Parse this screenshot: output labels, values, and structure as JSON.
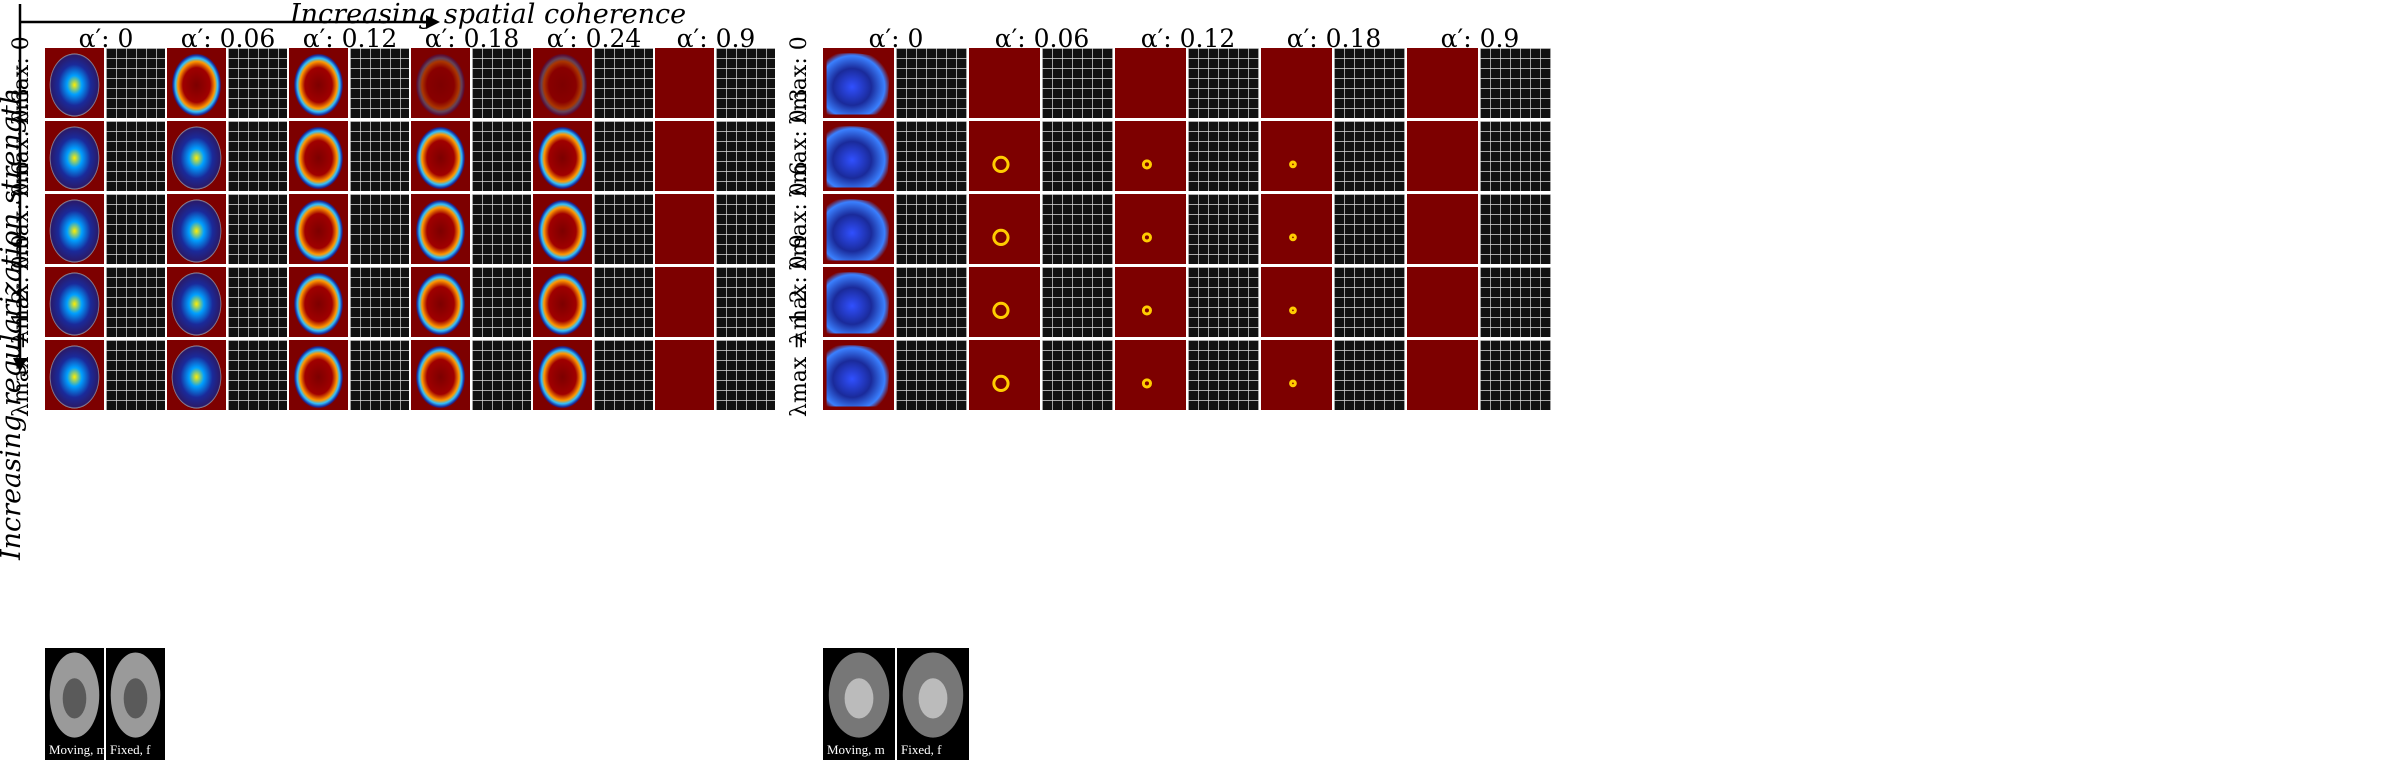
{
  "figure": {
    "x_axis_title": "Increasing spatial coherence",
    "y_axis_title": "Increasing regularization strength"
  },
  "left_panel": {
    "columns": [
      "α′: 0",
      "α′: 0.06",
      "α′: 0.12",
      "α′: 0.18",
      "α′: 0.24",
      "α′: 0.9"
    ],
    "rows": [
      "λmax: 0",
      "λmax: 0.3",
      "λmax: 0.6",
      "λmax: 0.9",
      "λmax = 1.2"
    ],
    "thumbnails": [
      "Moving, m",
      "Fixed, f"
    ]
  },
  "right_panel": {
    "columns": [
      "α′: 0",
      "α′: 0.06",
      "α′: 0.12",
      "α′: 0.18",
      "α′: 0.9"
    ],
    "rows": [
      "λmax: 0",
      "λmax: 0.3",
      "λmax: 0.6",
      "λmax: 0.9",
      "λmax = 1.2"
    ],
    "thumbnails": [
      "Moving, m",
      "Fixed, f"
    ]
  },
  "colors": {
    "heatmap_background": "#7d0000",
    "deformation_background": "#111111",
    "grid_line": "#ffffff"
  }
}
